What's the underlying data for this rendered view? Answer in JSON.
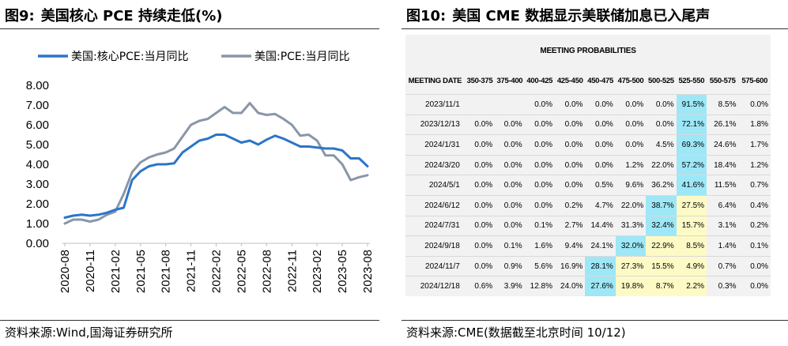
{
  "left": {
    "figure_label": "图9:",
    "title": "美国核心 PCE 持续走低(%)",
    "source": "资料来源:Wind,国海证券研究所"
  },
  "right": {
    "figure_label": "图10:",
    "title": "美国 CME 数据显示美联储加息已入尾声",
    "source": "资料来源:CME(数据截至北京时间 10/12)"
  },
  "chart_data": {
    "type": "line",
    "x": [
      "2020-08",
      "2020-09",
      "2020-10",
      "2020-11",
      "2020-12",
      "2021-01",
      "2021-02",
      "2021-03",
      "2021-04",
      "2021-05",
      "2021-06",
      "2021-07",
      "2021-08",
      "2021-09",
      "2021-10",
      "2021-11",
      "2021-12",
      "2022-01",
      "2022-02",
      "2022-03",
      "2022-04",
      "2022-05",
      "2022-06",
      "2022-07",
      "2022-08",
      "2022-09",
      "2022-10",
      "2022-11",
      "2022-12",
      "2023-01",
      "2023-02",
      "2023-03",
      "2023-04",
      "2023-05",
      "2023-06",
      "2023-07",
      "2023-08"
    ],
    "xticks": [
      "2020-08",
      "2020-11",
      "2021-02",
      "2021-05",
      "2021-08",
      "2021-11",
      "2022-02",
      "2022-05",
      "2022-08",
      "2022-11",
      "2023-02",
      "2023-05",
      "2023-08"
    ],
    "yticks": [
      "0.00",
      "1.00",
      "2.00",
      "3.00",
      "4.00",
      "5.00",
      "6.00",
      "7.00",
      "8.00"
    ],
    "ylim": [
      0,
      8
    ],
    "legend_position": "top",
    "series": [
      {
        "name": "美国:核心PCE:当月同比",
        "color": "#2b75c9",
        "values": [
          1.3,
          1.4,
          1.45,
          1.4,
          1.45,
          1.55,
          1.7,
          1.8,
          3.2,
          3.65,
          3.9,
          4.0,
          4.0,
          4.05,
          4.6,
          4.9,
          5.2,
          5.3,
          5.5,
          5.5,
          5.3,
          5.1,
          5.2,
          5.0,
          5.25,
          5.45,
          5.3,
          5.1,
          4.9,
          4.9,
          4.85,
          4.8,
          4.8,
          4.7,
          4.3,
          4.3,
          3.9
        ]
      },
      {
        "name": "美国:PCE:当月同比",
        "color": "#8a96a8",
        "values": [
          1.0,
          1.2,
          1.2,
          1.1,
          1.2,
          1.45,
          1.6,
          2.5,
          3.6,
          4.1,
          4.35,
          4.5,
          4.6,
          4.8,
          5.4,
          6.0,
          6.2,
          6.3,
          6.6,
          6.9,
          6.6,
          6.6,
          7.1,
          6.6,
          6.5,
          6.55,
          6.3,
          6.0,
          5.45,
          5.5,
          5.2,
          4.45,
          4.45,
          4.0,
          3.2,
          3.35,
          3.45
        ]
      }
    ]
  },
  "table": {
    "caption": "MEETING PROBABILITIES",
    "columns": [
      "MEETING DATE",
      "350-375",
      "375-400",
      "400-425",
      "425-450",
      "450-475",
      "475-500",
      "500-525",
      "525-550",
      "550-575",
      "575-600"
    ],
    "rows": [
      {
        "cells": [
          "2023/11/1",
          "",
          "",
          "0.0%",
          "0.0%",
          "0.0%",
          "0.0%",
          "0.0%",
          "91.5%",
          "8.5%",
          "0.0%"
        ],
        "hl": {
          "8": "b"
        }
      },
      {
        "cells": [
          "2023/12/13",
          "0.0%",
          "0.0%",
          "0.0%",
          "0.0%",
          "0.0%",
          "0.0%",
          "0.0%",
          "72.1%",
          "26.1%",
          "1.8%"
        ],
        "hl": {
          "8": "b"
        }
      },
      {
        "cells": [
          "2024/1/31",
          "0.0%",
          "0.0%",
          "0.0%",
          "0.0%",
          "0.0%",
          "0.0%",
          "4.5%",
          "69.3%",
          "24.6%",
          "1.7%"
        ],
        "hl": {
          "8": "b"
        }
      },
      {
        "cells": [
          "2024/3/20",
          "0.0%",
          "0.0%",
          "0.0%",
          "0.0%",
          "0.0%",
          "1.2%",
          "22.0%",
          "57.2%",
          "18.4%",
          "1.2%"
        ],
        "hl": {
          "8": "b"
        }
      },
      {
        "cells": [
          "2024/5/1",
          "0.0%",
          "0.0%",
          "0.0%",
          "0.0%",
          "0.5%",
          "9.6%",
          "36.2%",
          "41.6%",
          "11.5%",
          "0.7%"
        ],
        "hl": {
          "8": "b"
        }
      },
      {
        "cells": [
          "2024/6/12",
          "0.0%",
          "0.0%",
          "0.0%",
          "0.2%",
          "4.7%",
          "22.0%",
          "38.7%",
          "27.5%",
          "6.4%",
          "0.4%"
        ],
        "hl": {
          "7": "b",
          "8": "y"
        }
      },
      {
        "cells": [
          "2024/7/31",
          "0.0%",
          "0.0%",
          "0.1%",
          "2.7%",
          "14.4%",
          "31.3%",
          "32.4%",
          "15.7%",
          "3.1%",
          "0.2%"
        ],
        "hl": {
          "7": "b",
          "8": "y"
        }
      },
      {
        "cells": [
          "2024/9/18",
          "0.0%",
          "0.1%",
          "1.6%",
          "9.4%",
          "24.1%",
          "32.0%",
          "22.9%",
          "8.5%",
          "1.4%",
          "0.1%"
        ],
        "hl": {
          "6": "b",
          "7": "y",
          "8": "y"
        }
      },
      {
        "cells": [
          "2024/11/7",
          "0.0%",
          "0.9%",
          "5.6%",
          "16.9%",
          "28.1%",
          "27.3%",
          "15.5%",
          "4.9%",
          "0.7%",
          "0.0%"
        ],
        "hl": {
          "5": "b",
          "6": "y",
          "7": "y",
          "8": "y"
        }
      },
      {
        "cells": [
          "2024/12/18",
          "0.6%",
          "3.9%",
          "12.8%",
          "24.0%",
          "27.6%",
          "19.8%",
          "8.7%",
          "2.2%",
          "0.3%",
          "0.0%"
        ],
        "hl": {
          "5": "b",
          "6": "y",
          "7": "y",
          "8": "y"
        }
      }
    ]
  }
}
